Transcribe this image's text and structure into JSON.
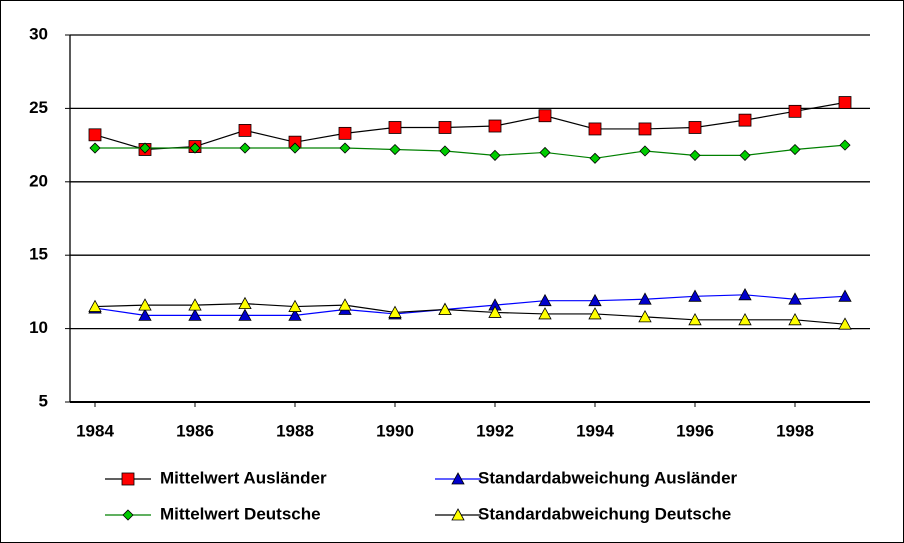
{
  "chart_data": {
    "type": "line",
    "x": [
      1984,
      1985,
      1986,
      1987,
      1988,
      1989,
      1990,
      1991,
      1992,
      1993,
      1994,
      1995,
      1996,
      1997,
      1998,
      1999
    ],
    "xlim": [
      1983.5,
      1999.5
    ],
    "xticks": [
      1984,
      1986,
      1988,
      1990,
      1992,
      1994,
      1996,
      1998
    ],
    "ylim": [
      5,
      30
    ],
    "yticks": [
      5,
      10,
      15,
      20,
      25,
      30
    ],
    "grid": true,
    "legend": "bottom",
    "series": [
      {
        "name": "Mittelwert Ausländer",
        "color": "#000000",
        "marker": "square",
        "marker_color": "#ff0000",
        "values": [
          23.2,
          22.2,
          22.4,
          23.5,
          22.7,
          23.3,
          23.7,
          23.7,
          23.8,
          24.5,
          23.6,
          23.6,
          23.7,
          24.2,
          24.8,
          25.4
        ]
      },
      {
        "name": "Standardabweichung Ausländer",
        "color": "#0000ff",
        "marker": "triangle",
        "marker_color": "#0000cc",
        "values": [
          11.4,
          10.9,
          10.9,
          10.9,
          10.9,
          11.3,
          11.0,
          11.3,
          11.6,
          11.9,
          11.9,
          12.0,
          12.2,
          12.3,
          12.0,
          12.2
        ]
      },
      {
        "name": "Mittelwert Deutsche",
        "color": "#008000",
        "marker": "diamond",
        "marker_color": "#00cc00",
        "values": [
          22.3,
          22.3,
          22.3,
          22.3,
          22.3,
          22.3,
          22.2,
          22.1,
          21.8,
          22.0,
          21.6,
          22.1,
          21.8,
          21.8,
          22.2,
          22.5
        ]
      },
      {
        "name": "Standardabweichung Deutsche",
        "color": "#000000",
        "marker": "triangle",
        "marker_color": "#ffff00",
        "values": [
          11.5,
          11.6,
          11.6,
          11.7,
          11.5,
          11.6,
          11.1,
          11.3,
          11.1,
          11.0,
          11.0,
          10.8,
          10.6,
          10.6,
          10.6,
          10.3
        ]
      }
    ]
  }
}
